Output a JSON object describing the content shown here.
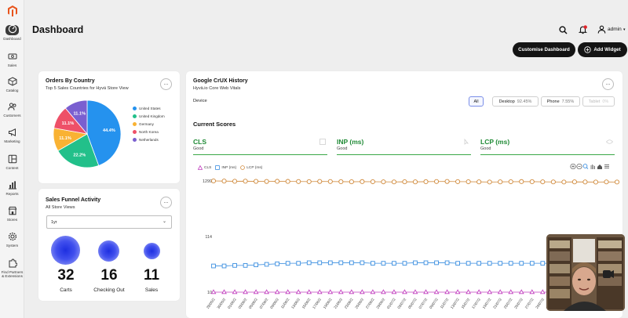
{
  "header": {
    "title": "Dashboard",
    "user": "admin",
    "buttons": {
      "customise": "Customise Dashboard",
      "add_widget": "Add Widget"
    }
  },
  "sidebar": {
    "items": [
      {
        "label": "Dashboard",
        "icon": "dashboard-icon"
      },
      {
        "label": "Sales",
        "icon": "dollar-icon"
      },
      {
        "label": "Catalog",
        "icon": "box-icon"
      },
      {
        "label": "Customers",
        "icon": "users-icon"
      },
      {
        "label": "Marketing",
        "icon": "megaphone-icon"
      },
      {
        "label": "Content",
        "icon": "layout-icon"
      },
      {
        "label": "Reports",
        "icon": "bar-chart-icon"
      },
      {
        "label": "Stores",
        "icon": "store-icon"
      },
      {
        "label": "System",
        "icon": "gear-icon"
      },
      {
        "label": "Find Partners & Extensions",
        "line1": "Find Partners",
        "line2": "& Extensions",
        "icon": "puzzle-icon"
      }
    ]
  },
  "orders_card": {
    "title": "Orders By Country",
    "subtitle": "Top 5 Sales Countries for Hyvä Store View"
  },
  "funnel_card": {
    "title": "Sales Funnel Activity",
    "subtitle": "All Store Views",
    "period": "1yr",
    "stats": [
      {
        "value": "32",
        "label": "Carts"
      },
      {
        "value": "16",
        "label": "Checking Out"
      },
      {
        "value": "11",
        "label": "Sales"
      }
    ]
  },
  "crux_card": {
    "title": "Google CrUX History",
    "subtitle": "Hyvä.io Core Web Vitals",
    "device_label": "Device",
    "devices": [
      {
        "label": "All",
        "pct": ""
      },
      {
        "label": "Desktop",
        "pct": "92.45%"
      },
      {
        "label": "Phone",
        "pct": "7.55%"
      },
      {
        "label": "Tablet",
        "pct": "0%"
      }
    ],
    "current_scores_label": "Current Scores",
    "metrics": [
      {
        "name": "CLS",
        "status": "Good"
      },
      {
        "name": "INP (ms)",
        "status": "Good"
      },
      {
        "name": "LCP (ms)",
        "status": "Good"
      }
    ]
  },
  "chart_data": [
    {
      "type": "pie",
      "categories": [
        "United States",
        "United Kingdom",
        "Germany",
        "North Korea",
        "Netherlands"
      ],
      "values": [
        44.4,
        22.2,
        11.1,
        11.1,
        11.1
      ],
      "data_labels": [
        "44.4%",
        "22.2%",
        "11.1%",
        "11.1%",
        "11.1%"
      ],
      "colors": [
        "#2592ee",
        "#22c08a",
        "#f9b233",
        "#ee5068",
        "#7a5fd0"
      ],
      "legend_position": "right"
    },
    {
      "type": "line",
      "y_ticks": [
        "1299",
        "114",
        "10"
      ],
      "series": [
        {
          "name": "CLS",
          "marker": "triangle",
          "color": "#c13fbf"
        },
        {
          "name": "INP (ms)",
          "marker": "square",
          "color": "#3a8ee0"
        },
        {
          "name": "LCP (ms)",
          "marker": "circle",
          "color": "#d08a3c"
        }
      ],
      "x_labels": [
        "28/05/2",
        "30/05/2",
        "01/06/2",
        "03/06/2",
        "05/06/2",
        "07/06/2",
        "09/06/2",
        "11/06/2",
        "13/06/2",
        "15/06/2",
        "17/06/2",
        "19/06/2",
        "21/06/2",
        "23/06/2",
        "25/06/2",
        "27/06/2",
        "29/06/2",
        "01/07/2",
        "03/07/2",
        "05/07/2",
        "07/07/2",
        "09/07/2",
        "11/07/2",
        "13/07/2",
        "15/07/2",
        "17/07/2",
        "19/07/2",
        "21/07/2",
        "23/07/2",
        "25/07/2",
        "27/07/2",
        "29/07/2",
        "31/07/2",
        "02/08/2",
        "04/08/2",
        "06/08/2",
        "08/08/2",
        "10/08/2",
        "12/08/2"
      ],
      "lcp_values": [
        1299,
        1296,
        1292,
        1294,
        1290,
        1288,
        1291,
        1289,
        1286,
        1284,
        1288,
        1286,
        1283,
        1281,
        1285,
        1282,
        1280,
        1278,
        1281,
        1279,
        1283,
        1286,
        1288,
        1284,
        1282,
        1279,
        1276,
        1279,
        1282,
        1285,
        1283,
        1280,
        1278,
        1276,
        1279,
        1277,
        1275,
        1278,
        1276
      ],
      "inp_values": [
        59,
        59,
        60,
        60,
        61,
        62,
        63,
        64,
        64,
        65,
        65,
        65,
        65,
        65,
        65,
        64,
        64,
        64,
        64,
        65,
        65,
        65,
        65,
        64,
        64,
        64,
        64,
        64,
        64,
        64,
        64,
        64,
        64,
        64,
        64,
        64,
        64,
        64,
        64
      ],
      "cls_values": [
        10,
        10,
        10,
        10,
        10,
        10,
        10,
        10,
        10,
        10,
        10,
        10,
        10,
        10,
        10,
        10,
        10,
        10,
        10,
        10,
        10,
        10,
        10,
        10,
        10,
        10,
        10,
        10,
        10,
        10,
        10,
        10,
        10,
        10,
        10,
        10,
        10,
        10,
        10
      ]
    }
  ]
}
